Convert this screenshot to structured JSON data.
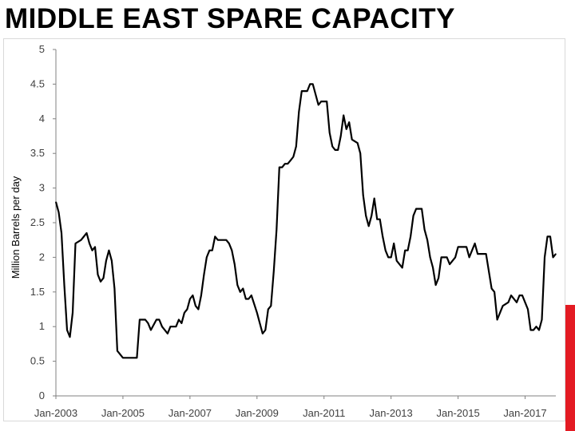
{
  "slide": {
    "title": "MIDDLE EAST SPARE CAPACITY"
  },
  "colors": {
    "line": "#000000",
    "axis": "#808080",
    "accent": "#e31b23",
    "tick_text": "#404040"
  },
  "chart_data": {
    "type": "line",
    "title": "",
    "xlabel": "",
    "ylabel": "Million Barrels per day",
    "ylim": [
      0,
      5
    ],
    "xlim": [
      "2003-01",
      "2017-12"
    ],
    "yticks": [
      "0",
      "0.5",
      "1",
      "1.5",
      "2",
      "2.5",
      "3",
      "3.5",
      "4",
      "4.5",
      "5"
    ],
    "xticks": [
      "Jan-2003",
      "Jan-2005",
      "Jan-2007",
      "Jan-2009",
      "Jan-2011",
      "Jan-2013",
      "Jan-2015",
      "Jan-2017"
    ],
    "grid": false,
    "legend": "none",
    "series": [
      {
        "points": [
          [
            "2003-01",
            2.8
          ],
          [
            "2003-02",
            2.65
          ],
          [
            "2003-03",
            2.35
          ],
          [
            "2003-04",
            1.6
          ],
          [
            "2003-05",
            0.95
          ],
          [
            "2003-06",
            0.85
          ],
          [
            "2003-07",
            1.2
          ],
          [
            "2003-08",
            2.2
          ],
          [
            "2003-10",
            2.25
          ],
          [
            "2003-12",
            2.35
          ],
          [
            "2004-01",
            2.2
          ],
          [
            "2004-02",
            2.1
          ],
          [
            "2004-03",
            2.15
          ],
          [
            "2004-04",
            1.75
          ],
          [
            "2004-05",
            1.65
          ],
          [
            "2004-06",
            1.7
          ],
          [
            "2004-07",
            1.95
          ],
          [
            "2004-08",
            2.1
          ],
          [
            "2004-09",
            1.95
          ],
          [
            "2004-10",
            1.55
          ],
          [
            "2004-11",
            0.65
          ],
          [
            "2004-12",
            0.6
          ],
          [
            "2005-01",
            0.55
          ],
          [
            "2005-04",
            0.55
          ],
          [
            "2005-06",
            0.55
          ],
          [
            "2005-07",
            1.1
          ],
          [
            "2005-09",
            1.1
          ],
          [
            "2005-10",
            1.05
          ],
          [
            "2005-11",
            0.95
          ],
          [
            "2006-01",
            1.1
          ],
          [
            "2006-02",
            1.1
          ],
          [
            "2006-03",
            1.0
          ],
          [
            "2006-05",
            0.9
          ],
          [
            "2006-06",
            1.0
          ],
          [
            "2006-08",
            1.0
          ],
          [
            "2006-09",
            1.1
          ],
          [
            "2006-10",
            1.05
          ],
          [
            "2006-11",
            1.2
          ],
          [
            "2006-12",
            1.25
          ],
          [
            "2007-01",
            1.4
          ],
          [
            "2007-02",
            1.45
          ],
          [
            "2007-03",
            1.3
          ],
          [
            "2007-04",
            1.25
          ],
          [
            "2007-05",
            1.45
          ],
          [
            "2007-06",
            1.75
          ],
          [
            "2007-07",
            2.0
          ],
          [
            "2007-08",
            2.1
          ],
          [
            "2007-09",
            2.1
          ],
          [
            "2007-10",
            2.3
          ],
          [
            "2007-11",
            2.25
          ],
          [
            "2008-02",
            2.25
          ],
          [
            "2008-03",
            2.2
          ],
          [
            "2008-04",
            2.1
          ],
          [
            "2008-05",
            1.9
          ],
          [
            "2008-06",
            1.6
          ],
          [
            "2008-07",
            1.5
          ],
          [
            "2008-08",
            1.55
          ],
          [
            "2008-09",
            1.4
          ],
          [
            "2008-10",
            1.4
          ],
          [
            "2008-11",
            1.45
          ],
          [
            "2009-01",
            1.2
          ],
          [
            "2009-02",
            1.05
          ],
          [
            "2009-03",
            0.9
          ],
          [
            "2009-04",
            0.95
          ],
          [
            "2009-05",
            1.25
          ],
          [
            "2009-06",
            1.3
          ],
          [
            "2009-07",
            1.8
          ],
          [
            "2009-08",
            2.4
          ],
          [
            "2009-09",
            3.3
          ],
          [
            "2009-10",
            3.3
          ],
          [
            "2009-11",
            3.35
          ],
          [
            "2009-12",
            3.35
          ],
          [
            "2010-01",
            3.4
          ],
          [
            "2010-02",
            3.45
          ],
          [
            "2010-03",
            3.6
          ],
          [
            "2010-04",
            4.1
          ],
          [
            "2010-05",
            4.4
          ],
          [
            "2010-07",
            4.4
          ],
          [
            "2010-08",
            4.5
          ],
          [
            "2010-09",
            4.5
          ],
          [
            "2010-10",
            4.35
          ],
          [
            "2010-11",
            4.2
          ],
          [
            "2010-12",
            4.25
          ],
          [
            "2011-02",
            4.25
          ],
          [
            "2011-03",
            3.8
          ],
          [
            "2011-04",
            3.6
          ],
          [
            "2011-05",
            3.55
          ],
          [
            "2011-06",
            3.55
          ],
          [
            "2011-07",
            3.75
          ],
          [
            "2011-08",
            4.05
          ],
          [
            "2011-09",
            3.85
          ],
          [
            "2011-10",
            3.95
          ],
          [
            "2011-11",
            3.7
          ],
          [
            "2012-01",
            3.65
          ],
          [
            "2012-02",
            3.5
          ],
          [
            "2012-03",
            2.9
          ],
          [
            "2012-04",
            2.6
          ],
          [
            "2012-05",
            2.45
          ],
          [
            "2012-06",
            2.6
          ],
          [
            "2012-07",
            2.85
          ],
          [
            "2012-08",
            2.55
          ],
          [
            "2012-09",
            2.55
          ],
          [
            "2012-10",
            2.3
          ],
          [
            "2012-11",
            2.1
          ],
          [
            "2012-12",
            2.0
          ],
          [
            "2013-01",
            2.0
          ],
          [
            "2013-02",
            2.2
          ],
          [
            "2013-03",
            1.95
          ],
          [
            "2013-05",
            1.85
          ],
          [
            "2013-06",
            2.1
          ],
          [
            "2013-07",
            2.1
          ],
          [
            "2013-08",
            2.3
          ],
          [
            "2013-09",
            2.6
          ],
          [
            "2013-10",
            2.7
          ],
          [
            "2013-12",
            2.7
          ],
          [
            "2014-01",
            2.4
          ],
          [
            "2014-02",
            2.25
          ],
          [
            "2014-03",
            2.0
          ],
          [
            "2014-04",
            1.85
          ],
          [
            "2014-05",
            1.6
          ],
          [
            "2014-06",
            1.7
          ],
          [
            "2014-07",
            2.0
          ],
          [
            "2014-09",
            2.0
          ],
          [
            "2014-10",
            1.9
          ],
          [
            "2014-12",
            2.0
          ],
          [
            "2015-01",
            2.15
          ],
          [
            "2015-04",
            2.15
          ],
          [
            "2015-05",
            2.0
          ],
          [
            "2015-06",
            2.1
          ],
          [
            "2015-07",
            2.2
          ],
          [
            "2015-08",
            2.05
          ],
          [
            "2015-11",
            2.05
          ],
          [
            "2015-12",
            1.8
          ],
          [
            "2016-01",
            1.55
          ],
          [
            "2016-02",
            1.5
          ],
          [
            "2016-03",
            1.1
          ],
          [
            "2016-04",
            1.2
          ],
          [
            "2016-05",
            1.3
          ],
          [
            "2016-07",
            1.35
          ],
          [
            "2016-08",
            1.45
          ],
          [
            "2016-10",
            1.35
          ],
          [
            "2016-11",
            1.45
          ],
          [
            "2016-12",
            1.45
          ],
          [
            "2017-01",
            1.35
          ],
          [
            "2017-02",
            1.25
          ],
          [
            "2017-03",
            0.95
          ],
          [
            "2017-04",
            0.95
          ],
          [
            "2017-05",
            1.0
          ],
          [
            "2017-06",
            0.95
          ],
          [
            "2017-07",
            1.1
          ],
          [
            "2017-08",
            2.0
          ],
          [
            "2017-09",
            2.3
          ],
          [
            "2017-10",
            2.3
          ],
          [
            "2017-11",
            2.0
          ],
          [
            "2017-12",
            2.05
          ]
        ]
      }
    ]
  }
}
